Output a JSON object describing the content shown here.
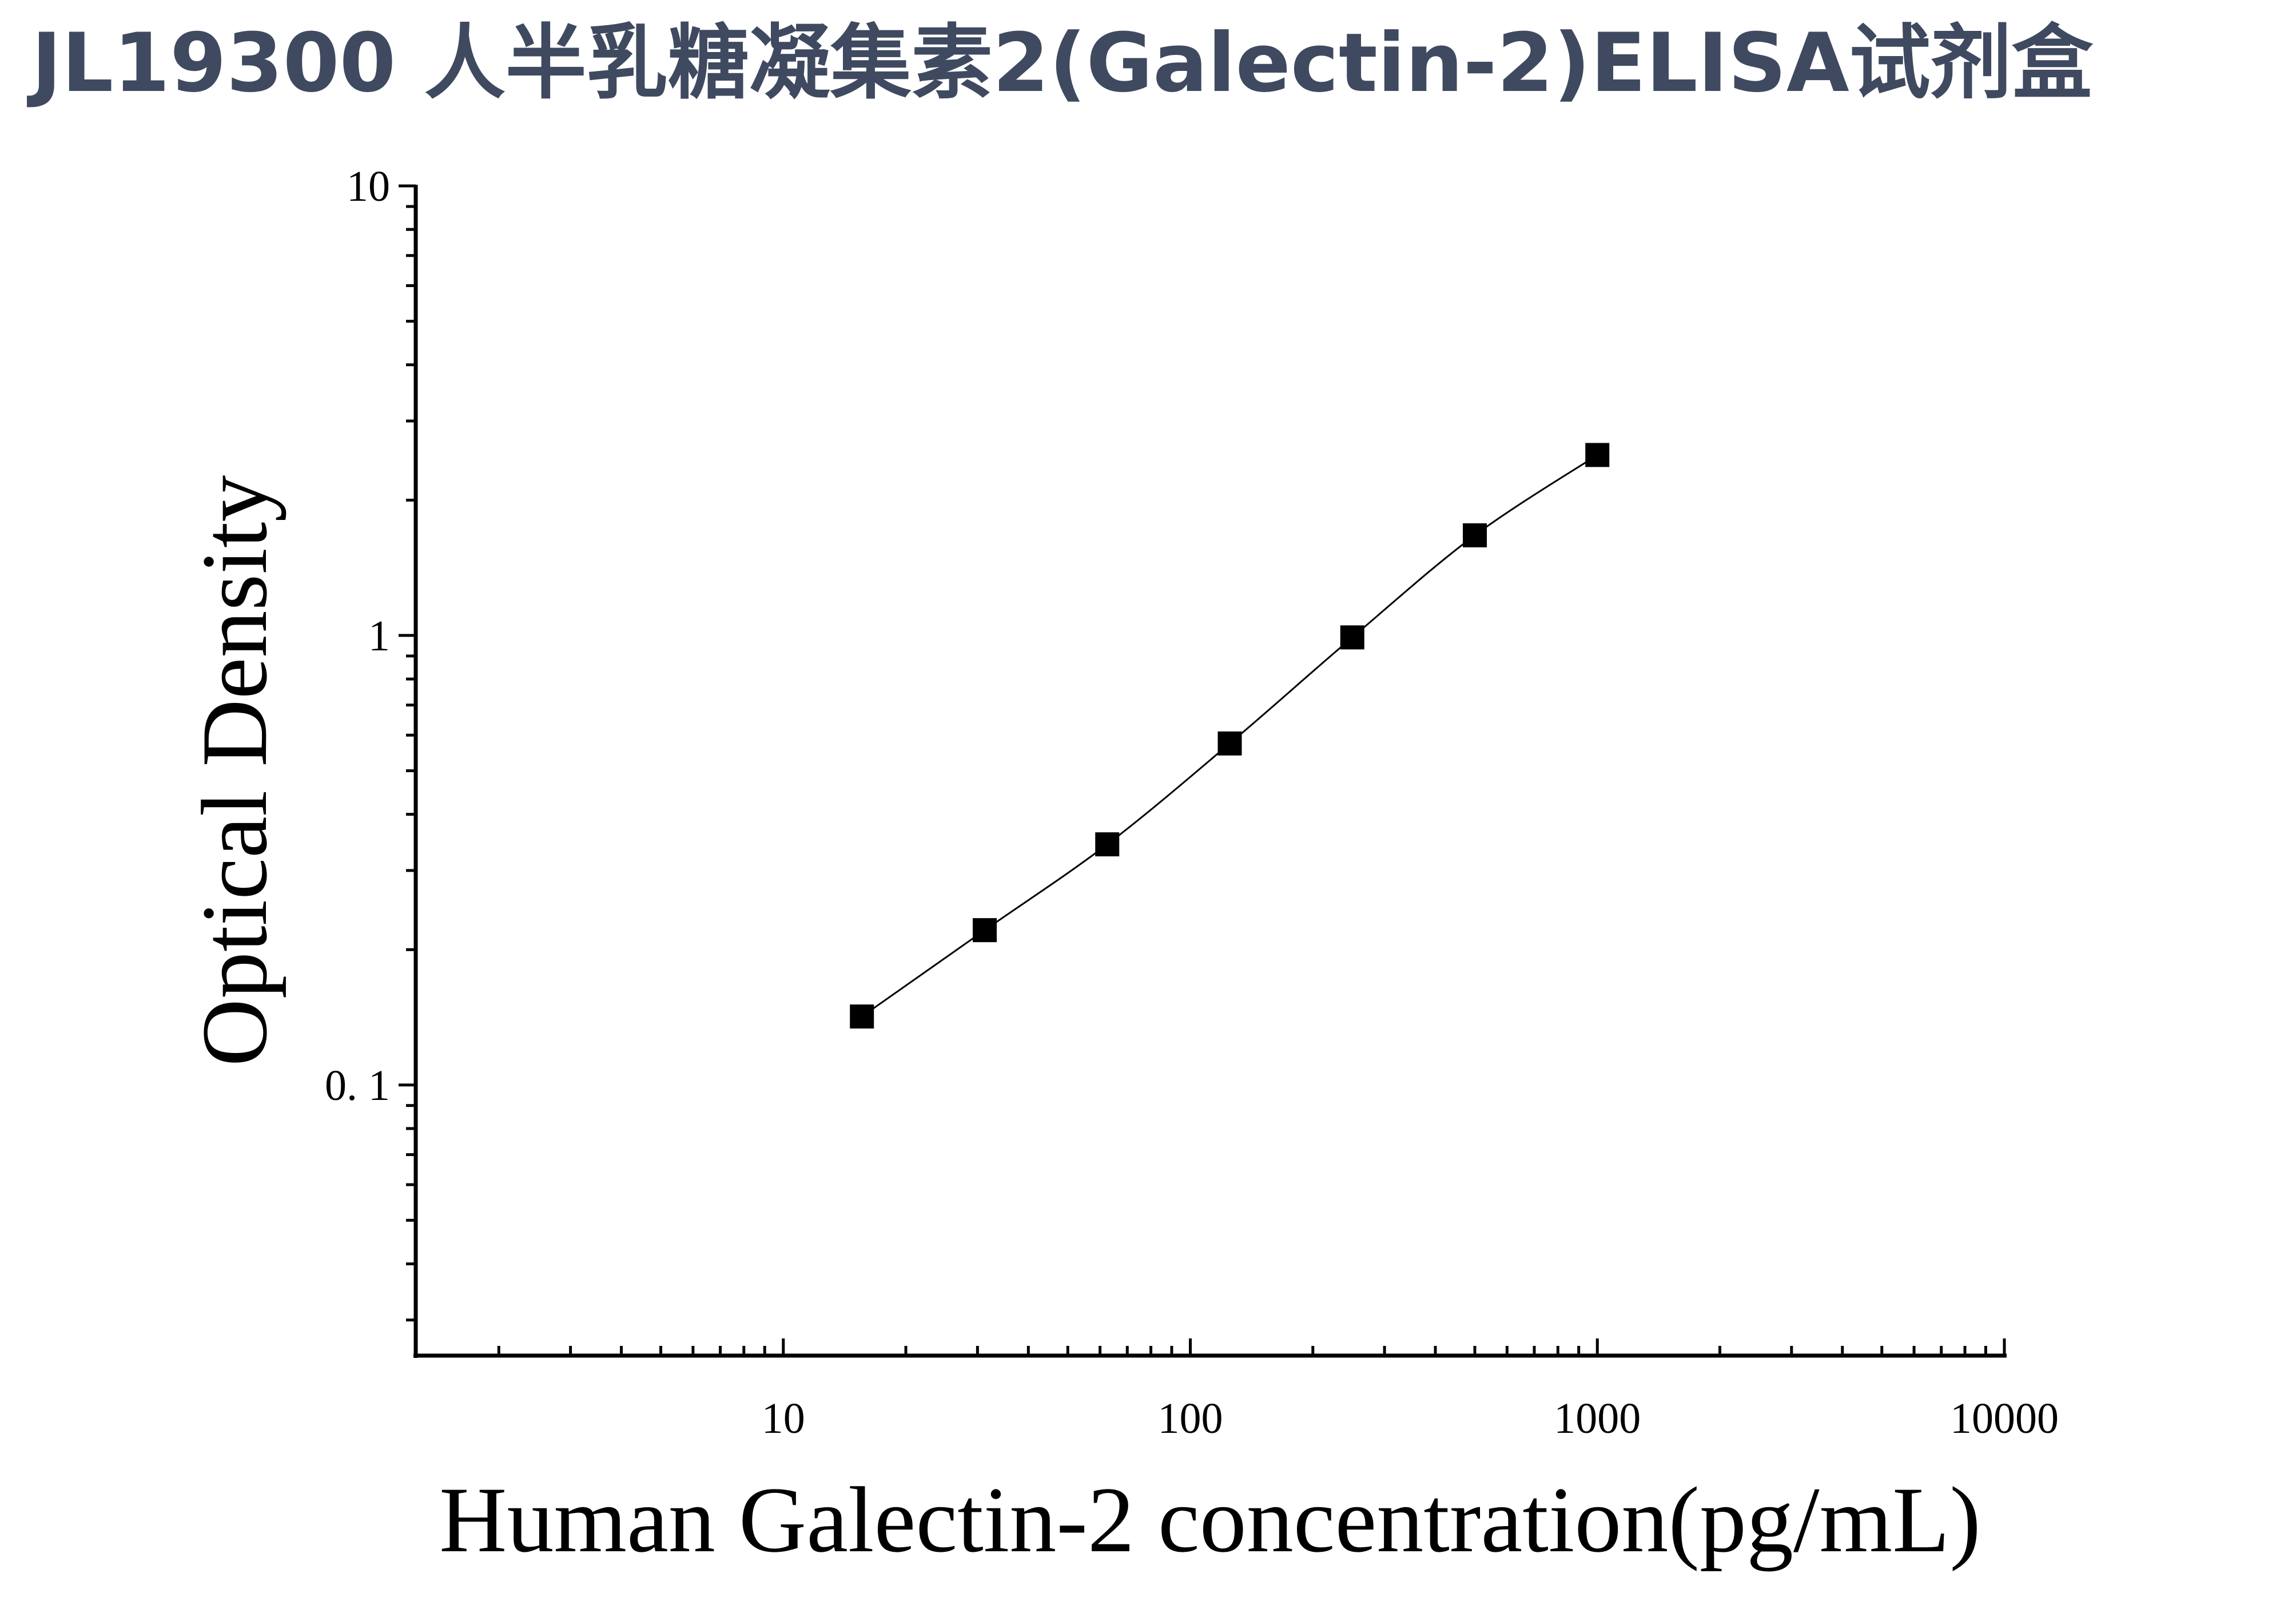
{
  "page": {
    "title": "JL19300 人半乳糖凝集素2(Galectin-2)ELISA试剂盒",
    "title_color": "#3f4a60"
  },
  "chart_data": {
    "type": "scatter",
    "title": "",
    "xlabel": "Human Galectin-2 concentration(pg/mL)",
    "ylabel": "Optical Density",
    "x_scale": "log",
    "y_scale": "log",
    "xlim": [
      1.25,
      10000
    ],
    "ylim": [
      0.025,
      10
    ],
    "x_ticks": [
      {
        "value": 10,
        "label": "10"
      },
      {
        "value": 100,
        "label": "100"
      },
      {
        "value": 1000,
        "label": "1000"
      },
      {
        "value": 10000,
        "label": "10000"
      }
    ],
    "y_ticks": [
      {
        "value": 0.1,
        "label": "0. 1"
      },
      {
        "value": 1,
        "label": "1"
      },
      {
        "value": 10,
        "label": "10"
      }
    ],
    "grid": false,
    "legend": "none",
    "series": [
      {
        "marker": "square",
        "fitted_curve": true,
        "color": "#000000",
        "points": [
          {
            "x": 15.6,
            "y": 0.142
          },
          {
            "x": 31.25,
            "y": 0.221
          },
          {
            "x": 62.5,
            "y": 0.343
          },
          {
            "x": 125,
            "y": 0.575
          },
          {
            "x": 250,
            "y": 0.99
          },
          {
            "x": 500,
            "y": 1.67
          },
          {
            "x": 1000,
            "y": 2.52
          }
        ]
      }
    ]
  }
}
